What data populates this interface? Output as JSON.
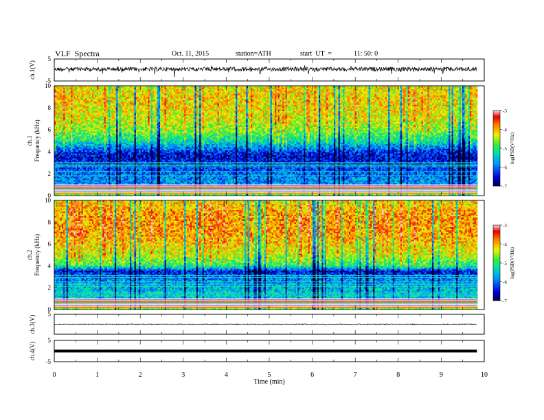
{
  "header": {
    "title": "VLF  Spectra",
    "date": "Oct. 11, 2015",
    "station": "station=ATH",
    "start_label": "start  UT  =",
    "start_time": "11: 50: 0"
  },
  "chart_data": [
    {
      "type": "line",
      "name": "ch1-waveform",
      "ylabel": "ch.1(V)",
      "ylim": [
        -5,
        5
      ],
      "yticks": [
        "5",
        "-5"
      ],
      "baseline": 0.4,
      "color": "#000000"
    },
    {
      "type": "heatmap",
      "name": "ch1-spectrogram",
      "ylabel_top": "ch.1",
      "ylabel": "Frequency (kHz)",
      "ylim": [
        0,
        10
      ],
      "yticks": [
        "0",
        "2",
        "4",
        "6",
        "8",
        "10"
      ],
      "colorbar_label": "log(PSD(V²/Hz)",
      "colorbar_ticks": [
        "-3",
        "-4",
        "-5",
        "-6",
        "-7"
      ],
      "colorbar_range": [
        -7,
        -3
      ],
      "band_profile_khz": [
        0,
        1,
        2,
        3,
        3.5,
        4,
        5,
        6,
        7,
        8,
        9,
        10
      ],
      "band_profile_logpsd": [
        -4.6,
        -5.7,
        -6.0,
        -6.3,
        -6.5,
        -6.3,
        -5.2,
        -4.6,
        -4.3,
        -4.2,
        -4.1,
        -4.3
      ]
    },
    {
      "type": "heatmap",
      "name": "ch2-spectrogram",
      "ylabel_top": "ch.2",
      "ylabel": "Frequency (kHz)",
      "ylim": [
        0,
        10
      ],
      "yticks": [
        "0",
        "2",
        "4",
        "6",
        "8",
        "10"
      ],
      "colorbar_label": "log(PSD(V²/Hz)",
      "colorbar_ticks": [
        "-3",
        "-4",
        "-5",
        "-6",
        "-7"
      ],
      "colorbar_range": [
        -7,
        -3
      ],
      "band_profile_khz": [
        0,
        1,
        2,
        3,
        3.5,
        4,
        5,
        6,
        7,
        8,
        9,
        10
      ],
      "band_profile_logpsd": [
        -4.5,
        -5.4,
        -5.6,
        -5.9,
        -6.5,
        -5.0,
        -4.4,
        -4.1,
        -3.9,
        -3.9,
        -3.9,
        -4.2
      ]
    },
    {
      "type": "line",
      "name": "ch3-waveform",
      "ylabel": "ch.3(V)",
      "ylim": [
        -5,
        5
      ],
      "yticks": [
        "5"
      ],
      "baseline": 0.0,
      "color": "#000000"
    },
    {
      "type": "line",
      "name": "ch4-waveform",
      "ylabel": "ch.4(V)",
      "ylim": [
        -5,
        5
      ],
      "yticks": [
        "5",
        "-5"
      ],
      "baseline": 0.0,
      "color": "#000000"
    }
  ],
  "x_axis": {
    "label": "Time  (min)",
    "ticks": [
      "0",
      "1",
      "2",
      "3",
      "4",
      "5",
      "6",
      "7",
      "8",
      "9",
      "10"
    ],
    "range": [
      0,
      10
    ],
    "data_end": 9.83
  }
}
